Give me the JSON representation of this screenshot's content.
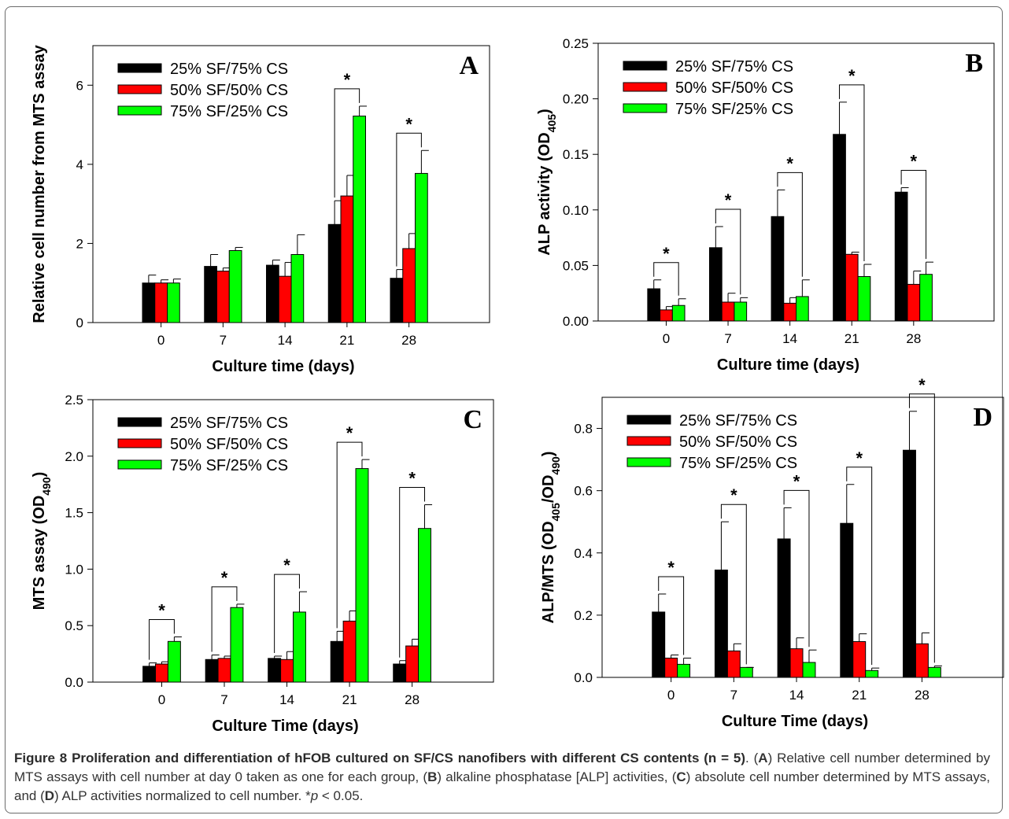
{
  "chart_data": [
    {
      "id": "A",
      "type": "bar",
      "panel_label": "A",
      "xlabel": "Culture time (days)",
      "ylabel": "Relative cell number from MTS assay",
      "ylim": [
        0,
        7
      ],
      "yticks": [
        "0",
        "2",
        "4",
        "6"
      ],
      "ytick_values": [
        0,
        2,
        4,
        6
      ],
      "categories": [
        "0",
        "7",
        "14",
        "21",
        "28"
      ],
      "legend_position": "top-left",
      "series": [
        {
          "name": "25% SF/75% CS",
          "color": "#000000",
          "values": [
            1.0,
            1.42,
            1.45,
            2.48,
            1.12
          ],
          "errors": [
            0.2,
            0.3,
            0.13,
            0.6,
            0.22
          ]
        },
        {
          "name": "50% SF/50% CS",
          "color": "#ff0000",
          "values": [
            1.0,
            1.3,
            1.17,
            3.2,
            1.87
          ],
          "errors": [
            0.08,
            0.08,
            0.35,
            0.52,
            0.38
          ]
        },
        {
          "name": "75% SF/25% CS",
          "color": "#00ff00",
          "values": [
            1.0,
            1.82,
            1.72,
            5.22,
            3.77
          ],
          "errors": [
            0.1,
            0.08,
            0.5,
            0.25,
            0.58
          ]
        }
      ],
      "significance": [
        {
          "category": "21",
          "label": "*"
        },
        {
          "category": "28",
          "label": "*"
        }
      ]
    },
    {
      "id": "B",
      "type": "bar",
      "panel_label": "B",
      "xlabel": "Culture time (days)",
      "ylabel": "ALP activity (OD",
      "ylabel_sub": "405",
      "ylabel_end": ")",
      "ylim": [
        0,
        0.25
      ],
      "yticks": [
        "0.00",
        "0.05",
        "0.10",
        "0.15",
        "0.20",
        "0.25"
      ],
      "ytick_values": [
        0,
        0.05,
        0.1,
        0.15,
        0.2,
        0.25
      ],
      "categories": [
        "0",
        "7",
        "14",
        "21",
        "28"
      ],
      "legend_position": "top-left",
      "series": [
        {
          "name": "25% SF/75% CS",
          "color": "#000000",
          "values": [
            0.029,
            0.066,
            0.094,
            0.168,
            0.116
          ],
          "errors": [
            0.008,
            0.019,
            0.024,
            0.029,
            0.004
          ]
        },
        {
          "name": "50% SF/50% CS",
          "color": "#ff0000",
          "values": [
            0.01,
            0.017,
            0.016,
            0.06,
            0.033
          ],
          "errors": [
            0.003,
            0.008,
            0.005,
            0.002,
            0.012
          ]
        },
        {
          "name": "75% SF/25% CS",
          "color": "#00ff00",
          "values": [
            0.014,
            0.017,
            0.022,
            0.04,
            0.042
          ],
          "errors": [
            0.006,
            0.004,
            0.015,
            0.011,
            0.011
          ]
        }
      ],
      "significance": [
        {
          "category": "0",
          "label": "*"
        },
        {
          "category": "7",
          "label": "*"
        },
        {
          "category": "14",
          "label": "*"
        },
        {
          "category": "21",
          "label": "*"
        },
        {
          "category": "28",
          "label": "*"
        }
      ]
    },
    {
      "id": "C",
      "type": "bar",
      "panel_label": "C",
      "xlabel": "Culture Time (days)",
      "ylabel": "MTS assay (OD",
      "ylabel_sub": "490",
      "ylabel_end": ")",
      "ylim": [
        0,
        2.5
      ],
      "yticks": [
        "0.0",
        "0.5",
        "1.0",
        "1.5",
        "2.0",
        "2.5"
      ],
      "ytick_values": [
        0,
        0.5,
        1.0,
        1.5,
        2.0,
        2.5
      ],
      "categories": [
        "0",
        "7",
        "14",
        "21",
        "28"
      ],
      "legend_position": "top-left",
      "series": [
        {
          "name": "25% SF/75% CS",
          "color": "#000000",
          "values": [
            0.14,
            0.2,
            0.21,
            0.36,
            0.16
          ],
          "errors": [
            0.03,
            0.04,
            0.02,
            0.09,
            0.03
          ]
        },
        {
          "name": "50% SF/50% CS",
          "color": "#ff0000",
          "values": [
            0.16,
            0.21,
            0.2,
            0.54,
            0.32
          ],
          "errors": [
            0.02,
            0.02,
            0.07,
            0.09,
            0.06
          ]
        },
        {
          "name": "75% SF/25% CS",
          "color": "#00ff00",
          "values": [
            0.36,
            0.66,
            0.62,
            1.89,
            1.36
          ],
          "errors": [
            0.04,
            0.03,
            0.18,
            0.08,
            0.21
          ]
        }
      ],
      "significance": [
        {
          "category": "0",
          "label": "*"
        },
        {
          "category": "7",
          "label": "*"
        },
        {
          "category": "14",
          "label": "*"
        },
        {
          "category": "21",
          "label": "*"
        },
        {
          "category": "28",
          "label": "*"
        }
      ]
    },
    {
      "id": "D",
      "type": "bar",
      "panel_label": "D",
      "xlabel": "Culture Time (days)",
      "ylabel": "ALP/MTS (OD",
      "ylabel_sub": "405",
      "ylabel_mid": "/OD",
      "ylabel_sub2": "490",
      "ylabel_end": ")",
      "ylim": [
        0,
        0.9
      ],
      "yticks": [
        "0.0",
        "0.2",
        "0.4",
        "0.6",
        "0.8"
      ],
      "ytick_values": [
        0,
        0.2,
        0.4,
        0.6,
        0.8
      ],
      "categories": [
        "0",
        "7",
        "14",
        "21",
        "28"
      ],
      "legend_position": "top-left",
      "series": [
        {
          "name": "25% SF/75% CS",
          "color": "#000000",
          "values": [
            0.21,
            0.345,
            0.445,
            0.495,
            0.73
          ],
          "errors": [
            0.058,
            0.155,
            0.1,
            0.125,
            0.125
          ]
        },
        {
          "name": "50% SF/50% CS",
          "color": "#ff0000",
          "values": [
            0.062,
            0.085,
            0.092,
            0.115,
            0.108
          ],
          "errors": [
            0.01,
            0.023,
            0.035,
            0.025,
            0.035
          ]
        },
        {
          "name": "75% SF/25% CS",
          "color": "#00ff00",
          "values": [
            0.042,
            0.032,
            0.048,
            0.022,
            0.032
          ],
          "errors": [
            0.02,
            0.0,
            0.04,
            0.008,
            0.005
          ]
        }
      ],
      "significance": [
        {
          "category": "0",
          "label": "*"
        },
        {
          "category": "7",
          "label": "*"
        },
        {
          "category": "14",
          "label": "*"
        },
        {
          "category": "21",
          "label": "*"
        },
        {
          "category": "28",
          "label": "*"
        }
      ]
    }
  ],
  "caption": {
    "lead": "Figure 8 Proliferation and differentiation of hFOB cultured on SF/CS nanofibers with different CS contents (n = 5)",
    "p1": ". (",
    "b1": "A",
    "t1": ") Relative cell number determined by MTS assays with cell number at day 0 taken as one for each group, (",
    "b2": "B",
    "t2": ") alkaline phosphatase [ALP] activities, (",
    "b3": "C",
    "t3": ") absolute cell number determined by MTS assays, and (",
    "b4": "D",
    "t4": ") ALP activities normalized to cell number. *",
    "p_symbol": "p",
    "t5": " < 0.05."
  }
}
